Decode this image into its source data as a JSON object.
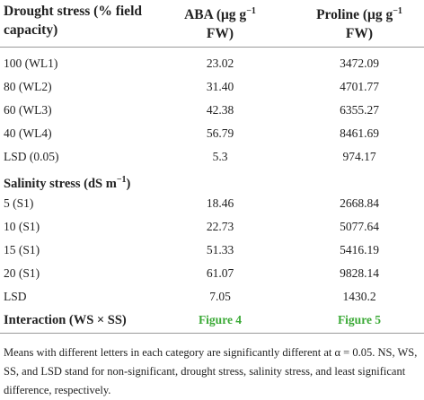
{
  "header": {
    "col1": [
      "Drought stress (% field",
      "capacity)"
    ],
    "aba": {
      "main": "ABA (μg g",
      "sup": "−1",
      "tail": "FW)"
    },
    "proline": {
      "main": "Proline (μg g",
      "sup": "−1",
      "tail": "FW)"
    }
  },
  "drought_rows": [
    [
      "100 (WL1)",
      "23.02",
      "3472.09"
    ],
    [
      "80 (WL2)",
      "31.40",
      "4701.77"
    ],
    [
      "60 (WL3)",
      "42.38",
      "6355.27"
    ],
    [
      "40 (WL4)",
      "56.79",
      "8461.69"
    ],
    [
      "LSD (0.05)",
      "5.3",
      "974.17"
    ]
  ],
  "salinity_header": {
    "main": "Salinity stress (dS m",
    "sup": "−1",
    "tail": ")"
  },
  "salinity_rows": [
    [
      "5 (S1)",
      "18.46",
      "2668.84"
    ],
    [
      "10 (S1)",
      "22.73",
      "5077.64"
    ],
    [
      "15 (S1)",
      "51.33",
      "5416.19"
    ],
    [
      "20 (S1)",
      "61.07",
      "9828.14"
    ],
    [
      "LSD",
      "7.05",
      "1430.2"
    ]
  ],
  "interaction": {
    "label": "Interaction (WS × SS)",
    "aba": "Figure 4",
    "proline": "Figure 5"
  },
  "footnote": "Means with different letters in each category are significantly different at α = 0.05. NS, WS, SS, and LSD stand for non-significant, drought stress, salinity stress, and least significant difference, respectively."
}
